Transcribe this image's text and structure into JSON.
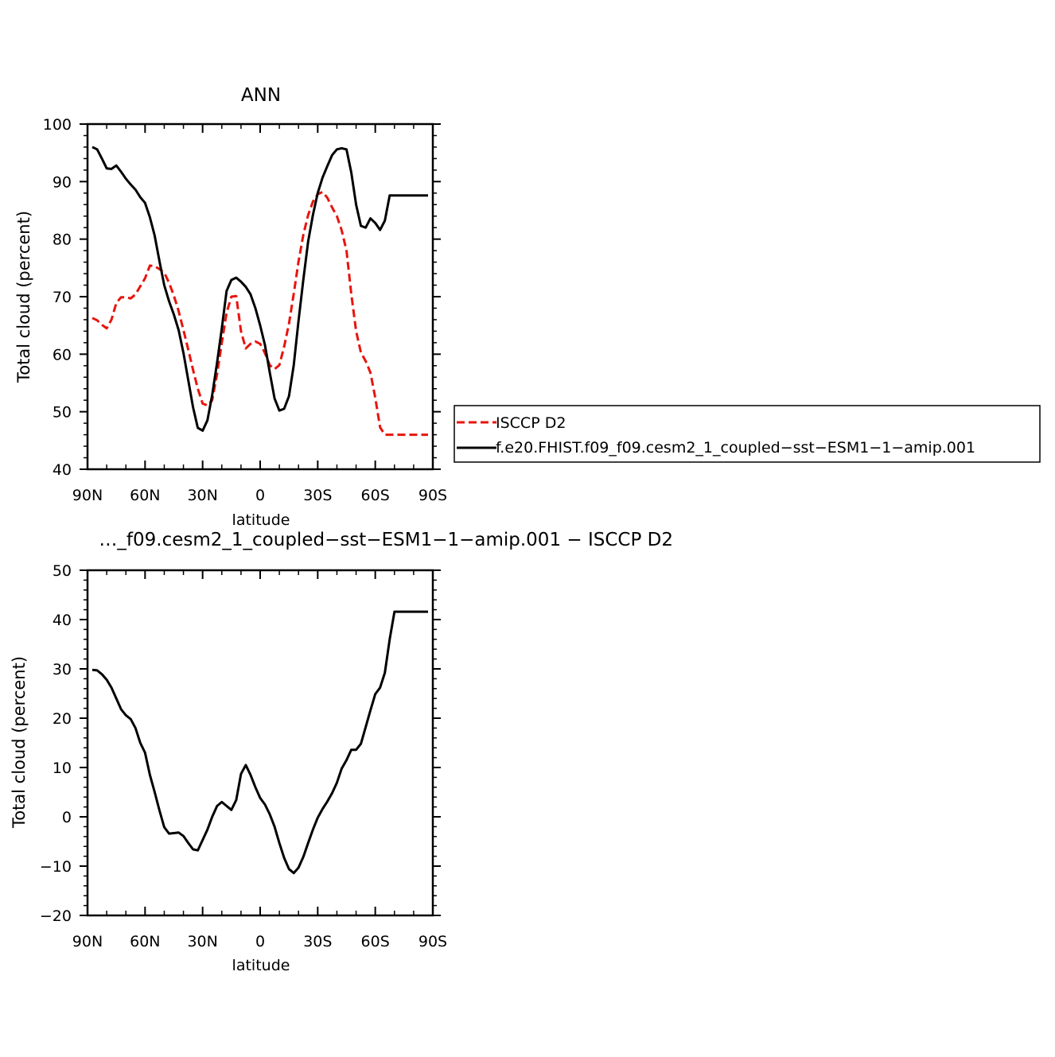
{
  "chart_data": [
    {
      "type": "line",
      "title": "ANN",
      "xlabel": "latitude",
      "ylabel": "Total cloud (percent)",
      "xlim": [
        -90,
        90
      ],
      "ylim": [
        40,
        100
      ],
      "x_ticks": [
        {
          "v": -90,
          "label": "90N"
        },
        {
          "v": -60,
          "label": "60N"
        },
        {
          "v": -30,
          "label": "30N"
        },
        {
          "v": 0,
          "label": "0"
        },
        {
          "v": 30,
          "label": "30S"
        },
        {
          "v": 60,
          "label": "60S"
        },
        {
          "v": 90,
          "label": "90S"
        }
      ],
      "y_ticks": [
        "40",
        "50",
        "60",
        "70",
        "80",
        "90",
        "100"
      ],
      "legend_position": "right",
      "x": [
        -87.5,
        -85,
        -82.5,
        -80,
        -77.5,
        -75,
        -72.5,
        -70,
        -67.5,
        -65,
        -62.5,
        -60,
        -57.5,
        -55,
        -52.5,
        -50,
        -47.5,
        -45,
        -42.5,
        -40,
        -37.5,
        -35,
        -32.5,
        -30,
        -27.5,
        -25,
        -22.5,
        -20,
        -17.5,
        -15,
        -12.5,
        -10,
        -7.5,
        -5,
        -2.5,
        0,
        2.5,
        5,
        7.5,
        10,
        12.5,
        15,
        17.5,
        20,
        22.5,
        25,
        27.5,
        30,
        32.5,
        35,
        37.5,
        40,
        42.5,
        45,
        47.5,
        50,
        52.5,
        55,
        57.5,
        60,
        62.5,
        65,
        67.5,
        70,
        72.5,
        75,
        77.5,
        80,
        82.5,
        85,
        87.5
      ],
      "series": [
        {
          "name": "ISCCP D2",
          "color": "#e8140d",
          "dash": true,
          "values": [
            66.3,
            65.9,
            65.1,
            64.5,
            66.0,
            68.9,
            69.9,
            69.9,
            69.7,
            70.4,
            71.8,
            73.2,
            75.4,
            75.3,
            74.8,
            74.2,
            72.4,
            70.2,
            67.5,
            64.2,
            60.8,
            57.3,
            54.0,
            51.4,
            51.1,
            52.0,
            56.5,
            62.0,
            67.2,
            70.0,
            70.1,
            64.0,
            61.0,
            61.8,
            62.2,
            61.8,
            60.2,
            58.1,
            57.4,
            58.1,
            61.3,
            65.3,
            70.5,
            76.1,
            80.8,
            84.2,
            86.5,
            87.8,
            88.2,
            87.2,
            85.5,
            84.0,
            81.5,
            78.0,
            70.5,
            64.0,
            60.3,
            58.8,
            56.8,
            52.4,
            47.3,
            46.0,
            46.0,
            46.0,
            46.0,
            46.0,
            46.0,
            46.0,
            46.0,
            46.0,
            46.0
          ]
        },
        {
          "name": "f.e20.FHIST.f09_f09.cesm2_1_coupled−sst−ESM1−1−amip.001",
          "color": "#000000",
          "dash": false,
          "values": [
            96.0,
            95.6,
            94.0,
            92.3,
            92.2,
            92.8,
            91.7,
            90.5,
            89.5,
            88.6,
            87.3,
            86.3,
            83.8,
            80.6,
            76.2,
            72.0,
            69.2,
            66.9,
            64.2,
            60.2,
            55.5,
            50.8,
            47.2,
            46.7,
            48.5,
            52.9,
            58.5,
            64.5,
            71.0,
            72.9,
            73.3,
            72.6,
            71.7,
            70.4,
            68.0,
            65.0,
            61.6,
            56.8,
            52.3,
            50.2,
            50.5,
            52.7,
            58.1,
            65.8,
            73.0,
            79.6,
            84.2,
            88.0,
            90.7,
            92.7,
            94.6,
            95.6,
            95.8,
            95.6,
            91.6,
            86.0,
            82.3,
            82.0,
            83.6,
            82.8,
            81.6,
            83.2,
            87.6,
            87.6,
            87.6,
            87.6,
            87.6,
            87.6,
            87.6,
            87.6,
            87.6
          ]
        }
      ]
    },
    {
      "type": "line",
      "title": "…_f09.cesm2_1_coupled−sst−ESM1−1−amip.001 − ISCCP D2",
      "xlabel": "latitude",
      "ylabel": "Total cloud (percent)",
      "xlim": [
        -90,
        90
      ],
      "ylim": [
        -20,
        50
      ],
      "x_ticks": [
        {
          "v": -90,
          "label": "90N"
        },
        {
          "v": -60,
          "label": "60N"
        },
        {
          "v": -30,
          "label": "30N"
        },
        {
          "v": 0,
          "label": "0"
        },
        {
          "v": 30,
          "label": "30S"
        },
        {
          "v": 60,
          "label": "60S"
        },
        {
          "v": 90,
          "label": "90S"
        }
      ],
      "y_ticks": [
        "−20",
        "−10",
        "0",
        "10",
        "20",
        "30",
        "40",
        "50"
      ],
      "x": [
        -87.5,
        -85,
        -82.5,
        -80,
        -77.5,
        -75,
        -72.5,
        -70,
        -67.5,
        -65,
        -62.5,
        -60,
        -57.5,
        -55,
        -52.5,
        -50,
        -47.5,
        -45,
        -42.5,
        -40,
        -37.5,
        -35,
        -32.5,
        -30,
        -27.5,
        -25,
        -22.5,
        -20,
        -17.5,
        -15,
        -12.5,
        -10,
        -7.5,
        -5,
        -2.5,
        0,
        2.5,
        5,
        7.5,
        10,
        12.5,
        15,
        17.5,
        20,
        22.5,
        25,
        27.5,
        30,
        32.5,
        35,
        37.5,
        40,
        42.5,
        45,
        47.5,
        50,
        52.5,
        55,
        57.5,
        60,
        62.5,
        65,
        67.5,
        70,
        72.5,
        75,
        77.5,
        80,
        82.5,
        85,
        87.5
      ],
      "series": [
        {
          "name": "",
          "color": "#000000",
          "dash": false,
          "values": [
            29.8,
            29.7,
            28.9,
            27.8,
            26.2,
            24.0,
            21.8,
            20.6,
            19.8,
            18.0,
            15.0,
            13.0,
            8.5,
            5.0,
            1.3,
            -2.1,
            -3.4,
            -3.3,
            -3.2,
            -3.9,
            -5.3,
            -6.6,
            -6.8,
            -4.7,
            -2.6,
            0.0,
            2.2,
            3.0,
            2.2,
            1.4,
            3.4,
            8.7,
            10.5,
            8.5,
            6.0,
            3.8,
            2.5,
            0.5,
            -2.0,
            -5.3,
            -8.3,
            -10.6,
            -11.4,
            -10.3,
            -8.1,
            -5.3,
            -2.6,
            -0.2,
            1.6,
            3.1,
            4.8,
            6.9,
            9.8,
            11.5,
            13.6,
            13.6,
            14.8,
            18.2,
            21.6,
            24.9,
            26.2,
            29.2,
            36.0,
            41.6,
            41.6,
            41.6,
            41.6,
            41.6,
            41.6,
            41.6,
            41.6
          ]
        }
      ]
    }
  ]
}
